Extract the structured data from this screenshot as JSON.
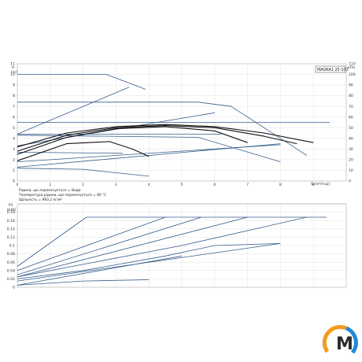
{
  "chart_data": [
    {
      "type": "line",
      "model_label": "MAGNA1 25-100",
      "ylabel_left_1": "H",
      "ylabel_left_2": "[m]",
      "ylabel_right": "кПа",
      "xlabel": "Q [м³/год]",
      "xlim": [
        0,
        10
      ],
      "ylim": [
        0,
        11
      ],
      "ylim_right": [
        0,
        110
      ],
      "x_ticks": [
        0,
        1,
        2,
        3,
        4,
        5,
        6,
        7,
        8,
        9
      ],
      "y_ticks": [
        0,
        1,
        2,
        3,
        4,
        5,
        6,
        7,
        8,
        9,
        10,
        11
      ],
      "y_right_ticks": [
        0,
        10,
        20,
        30,
        40,
        50,
        60,
        70,
        80,
        90,
        100,
        110
      ],
      "grid": true,
      "series": [
        {
          "x": [
            0,
            2.7,
            3.9
          ],
          "y": [
            10,
            10,
            8.6
          ],
          "color": "#355c8c"
        },
        {
          "x": [
            0,
            5.5,
            6.5,
            8.8
          ],
          "y": [
            7.4,
            7.4,
            7.0,
            2.4
          ],
          "color": "#355c8c"
        },
        {
          "x": [
            0,
            9.5
          ],
          "y": [
            5.5,
            5.5
          ],
          "color": "#355c8c"
        },
        {
          "x": [
            0,
            6.2
          ],
          "y": [
            4.4,
            4.4
          ],
          "color": "#355c8c"
        },
        {
          "x": [
            0,
            5.5,
            8.0
          ],
          "y": [
            4.3,
            4.1,
            1.8
          ],
          "color": "#355c8c"
        },
        {
          "x": [
            0,
            3.2
          ],
          "y": [
            2.7,
            2.6
          ],
          "color": "#355c8c"
        },
        {
          "x": [
            0,
            2.0,
            4.0
          ],
          "y": [
            1.2,
            1.1,
            0.45
          ],
          "color": "#355c8c"
        },
        {
          "x": [
            0,
            3.4
          ],
          "y": [
            4.4,
            8.8
          ],
          "color": "#355c8c"
        },
        {
          "x": [
            0,
            6.0
          ],
          "y": [
            3.3,
            6.4
          ],
          "color": "#355c8c"
        },
        {
          "x": [
            0,
            8.0
          ],
          "y": [
            1.8,
            3.4
          ],
          "color": "#355c8c"
        },
        {
          "x": [
            0,
            8.0
          ],
          "y": [
            1.3,
            3.5
          ],
          "color": "#355c8c"
        },
        {
          "x": [
            0,
            1.5,
            3.0,
            4.5,
            6.0,
            7.5,
            9.0
          ],
          "y": [
            3.2,
            4.5,
            5.1,
            5.3,
            5.1,
            4.5,
            3.6
          ],
          "color": "#111111"
        },
        {
          "x": [
            0,
            1.5,
            3.0,
            4.5,
            6.0,
            7.5,
            8.5
          ],
          "y": [
            2.8,
            4.3,
            5.0,
            5.2,
            5.0,
            4.2,
            3.5
          ],
          "color": "#111111"
        },
        {
          "x": [
            0,
            1.5,
            3.0,
            4.5,
            6.0,
            7.0
          ],
          "y": [
            2.5,
            4.1,
            4.9,
            5.1,
            4.7,
            3.6
          ],
          "color": "#111111"
        },
        {
          "x": [
            0,
            1.5,
            2.8,
            3.5,
            4.0
          ],
          "y": [
            1.9,
            3.5,
            3.7,
            3.0,
            2.3
          ],
          "color": "#111111"
        }
      ]
    },
    {
      "type": "line",
      "ylabel_left_1": "P1",
      "ylabel_left_2": "[kW]",
      "xlim": [
        0,
        10
      ],
      "ylim": [
        0,
        0.2
      ],
      "y_ticks": [
        0,
        0.02,
        0.04,
        0.06,
        0.08,
        0.1,
        0.12,
        0.14,
        0.16,
        0.18
      ],
      "grid": true,
      "series": [
        {
          "x": [
            0,
            2.1,
            9.4
          ],
          "y": [
            0.05,
            0.168,
            0.168
          ],
          "color": "#355c8c"
        },
        {
          "x": [
            0,
            4.5
          ],
          "y": [
            0.04,
            0.168
          ],
          "color": "#355c8c"
        },
        {
          "x": [
            0,
            5.6
          ],
          "y": [
            0.03,
            0.168
          ],
          "color": "#355c8c"
        },
        {
          "x": [
            0,
            7.0
          ],
          "y": [
            0.025,
            0.168
          ],
          "color": "#355c8c"
        },
        {
          "x": [
            0,
            2.0,
            5.0,
            8.8
          ],
          "y": [
            0.025,
            0.055,
            0.1,
            0.168
          ],
          "color": "#355c8c"
        },
        {
          "x": [
            0,
            2.0,
            4.5,
            6.0,
            8.0
          ],
          "y": [
            0.02,
            0.04,
            0.075,
            0.1,
            0.105
          ],
          "color": "#355c8c"
        },
        {
          "x": [
            0,
            2.0,
            4.0
          ],
          "y": [
            0.005,
            0.015,
            0.018
          ],
          "color": "#355c8c"
        },
        {
          "x": [
            0,
            8.0
          ],
          "y": [
            0.015,
            0.105
          ],
          "color": "#355c8c"
        },
        {
          "x": [
            0,
            5.0
          ],
          "y": [
            0.005,
            0.075
          ],
          "color": "#355c8c"
        }
      ]
    }
  ],
  "notes": {
    "line1": "Рідина, що перекачується = Вода",
    "line2": "Температура рідини, що перекачується = 60 °C",
    "line3": "Щільність = 983.2 кг/м³"
  },
  "logo": {
    "letter": "M",
    "colors": {
      "orange": "#f39c1e",
      "blue": "#1f8ad6",
      "dark": "#2a2a2a"
    }
  }
}
